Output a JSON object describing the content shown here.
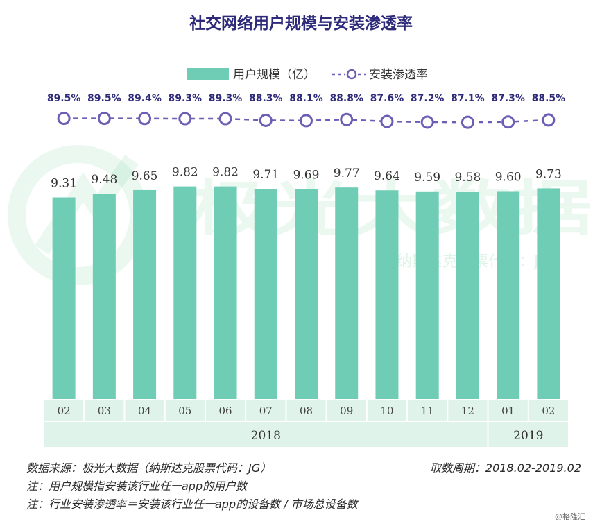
{
  "title": "社交网络用户规模与安装渗透率",
  "watermark": {
    "brand": "极光大数据",
    "sub": "纳斯达克股票代码：JG"
  },
  "credit": "@格隆汇",
  "footer": {
    "source": "数据来源：极光大数据（纳斯达克股票代码：JG）",
    "period": "取数周期：2018.02-2019.02",
    "note1": "注：用户规模指安装该行业任一app的用户数",
    "note2": "注：行业安装渗透率＝安装该行业任一app的设备数 / 市场总设备数"
  },
  "colors": {
    "bar": "#6ecdb4",
    "line": "#6b5fb5",
    "title": "#2d2a7a",
    "axis_band": "#dff3ea"
  },
  "chart_data": {
    "type": "bar",
    "categories": [
      "02",
      "03",
      "04",
      "05",
      "06",
      "07",
      "08",
      "09",
      "10",
      "11",
      "12",
      "01",
      "02"
    ],
    "year_groups": [
      {
        "label": "2018",
        "count": 11
      },
      {
        "label": "2019",
        "count": 2
      }
    ],
    "series": [
      {
        "name": "用户规模（亿）",
        "type": "bar",
        "values": [
          9.31,
          9.48,
          9.65,
          9.82,
          9.82,
          9.71,
          9.69,
          9.77,
          9.64,
          9.59,
          9.58,
          9.6,
          9.73
        ],
        "labels": [
          "9.31",
          "9.48",
          "9.65",
          "9.82",
          "9.82",
          "9.71",
          "9.69",
          "9.77",
          "9.64",
          "9.59",
          "9.58",
          "9.60",
          "9.73"
        ]
      },
      {
        "name": "安装渗透率",
        "type": "line",
        "values": [
          89.5,
          89.5,
          89.4,
          89.3,
          89.3,
          88.3,
          88.1,
          88.8,
          87.6,
          87.2,
          87.1,
          87.3,
          88.5
        ],
        "labels": [
          "89.5%",
          "89.5%",
          "89.4%",
          "89.3%",
          "89.3%",
          "88.3%",
          "88.1%",
          "88.8%",
          "87.6%",
          "87.2%",
          "87.1%",
          "87.3%",
          "88.5%"
        ]
      }
    ],
    "legend_position": "top-center",
    "grid": false
  }
}
